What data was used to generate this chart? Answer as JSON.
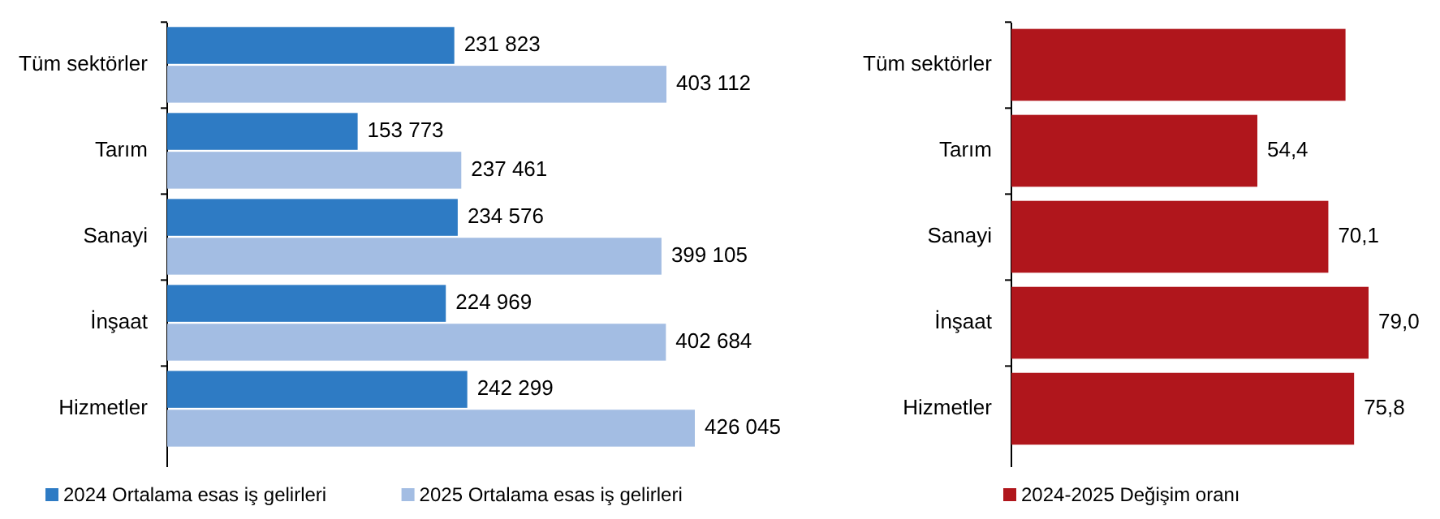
{
  "chart_data": [
    {
      "type": "bar",
      "orientation": "horizontal",
      "categories": [
        "Tüm sektörler",
        "Tarım",
        "Sanayi",
        "İnşaat",
        "Hizmetler"
      ],
      "legend": "bottom",
      "series": [
        {
          "name": "2024 Ortalama esas iş gelirleri",
          "color": "#2e7bc4",
          "values": [
            231823,
            153773,
            234576,
            224969,
            242299
          ],
          "value_labels": [
            "231 823",
            "153 773",
            "234 576",
            "224 969",
            "242 299"
          ]
        },
        {
          "name": "2025 Ortalama esas iş gelirleri",
          "color": "#a3bde3",
          "values": [
            403112,
            237461,
            399105,
            402684,
            426045
          ],
          "value_labels": [
            "403 112",
            "237 461",
            "399 105",
            "402 684",
            "426 045"
          ]
        }
      ]
    },
    {
      "type": "bar",
      "orientation": "horizontal",
      "categories": [
        "Tüm sektörler",
        "Tarım",
        "Sanayi",
        "İnşaat",
        "Hizmetler"
      ],
      "legend": "bottom",
      "series": [
        {
          "name": "2024-2025 Değişim oranı",
          "color": "#b0161c",
          "values": [
            73.9,
            54.4,
            70.1,
            79.0,
            75.8
          ],
          "value_labels": [
            null,
            "54,4",
            "70,1",
            "79,0",
            "75,8"
          ]
        }
      ]
    }
  ]
}
